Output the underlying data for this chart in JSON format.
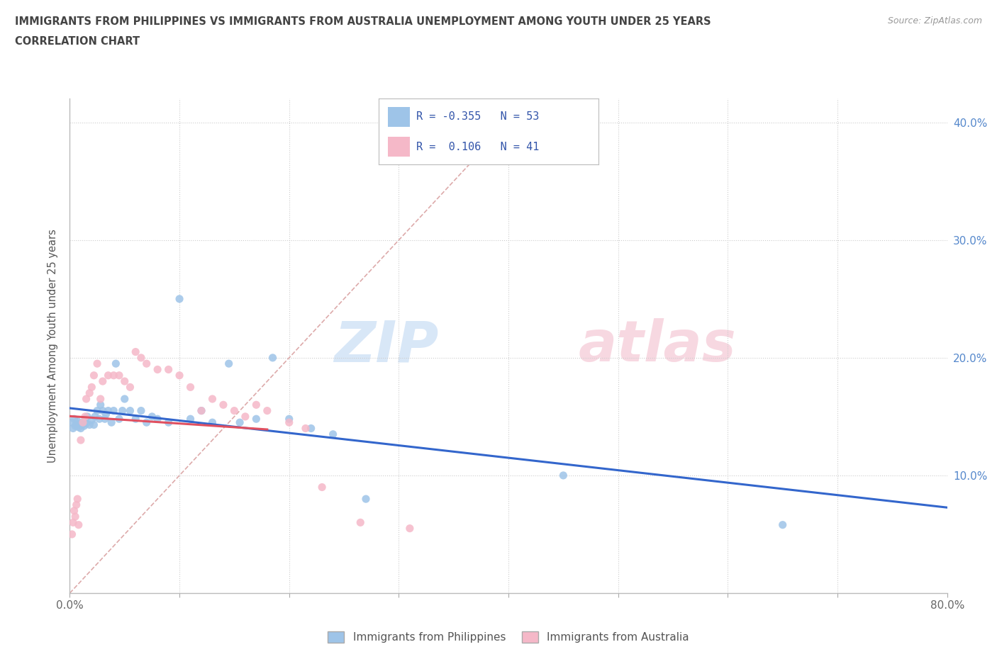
{
  "title_line1": "IMMIGRANTS FROM PHILIPPINES VS IMMIGRANTS FROM AUSTRALIA UNEMPLOYMENT AMONG YOUTH UNDER 25 YEARS",
  "title_line2": "CORRELATION CHART",
  "source_text": "Source: ZipAtlas.com",
  "ylabel": "Unemployment Among Youth under 25 years",
  "xlim": [
    0.0,
    0.8
  ],
  "ylim": [
    0.0,
    0.42
  ],
  "xticks": [
    0.0,
    0.1,
    0.2,
    0.3,
    0.4,
    0.5,
    0.6,
    0.7,
    0.8
  ],
  "ytick_positions": [
    0.1,
    0.2,
    0.3,
    0.4
  ],
  "ytick_labels": [
    "10.0%",
    "20.0%",
    "30.0%",
    "40.0%"
  ],
  "philippines_color": "#9ec4e8",
  "australia_color": "#f5b8c8",
  "philippines_line_color": "#3366cc",
  "australia_line_color": "#e05060",
  "diagonal_color": "#ddaaaa",
  "philippines_x": [
    0.002,
    0.003,
    0.004,
    0.005,
    0.006,
    0.007,
    0.008,
    0.009,
    0.01,
    0.011,
    0.012,
    0.013,
    0.014,
    0.015,
    0.016,
    0.018,
    0.02,
    0.022,
    0.023,
    0.025,
    0.027,
    0.028,
    0.03,
    0.032,
    0.033,
    0.035,
    0.038,
    0.04,
    0.042,
    0.045,
    0.048,
    0.05,
    0.055,
    0.06,
    0.065,
    0.07,
    0.075,
    0.08,
    0.09,
    0.1,
    0.11,
    0.12,
    0.13,
    0.145,
    0.155,
    0.17,
    0.185,
    0.2,
    0.22,
    0.24,
    0.27,
    0.45,
    0.65
  ],
  "philippines_y": [
    0.145,
    0.14,
    0.148,
    0.142,
    0.143,
    0.146,
    0.141,
    0.144,
    0.14,
    0.143,
    0.145,
    0.142,
    0.148,
    0.144,
    0.15,
    0.143,
    0.147,
    0.143,
    0.15,
    0.155,
    0.148,
    0.16,
    0.155,
    0.148,
    0.152,
    0.155,
    0.145,
    0.155,
    0.195,
    0.148,
    0.155,
    0.165,
    0.155,
    0.148,
    0.155,
    0.145,
    0.15,
    0.148,
    0.145,
    0.25,
    0.148,
    0.155,
    0.145,
    0.195,
    0.145,
    0.148,
    0.2,
    0.148,
    0.14,
    0.135,
    0.08,
    0.1,
    0.058
  ],
  "australia_x": [
    0.002,
    0.003,
    0.004,
    0.005,
    0.006,
    0.007,
    0.008,
    0.01,
    0.012,
    0.014,
    0.015,
    0.018,
    0.02,
    0.022,
    0.025,
    0.028,
    0.03,
    0.035,
    0.04,
    0.045,
    0.05,
    0.055,
    0.06,
    0.065,
    0.07,
    0.08,
    0.09,
    0.1,
    0.11,
    0.12,
    0.13,
    0.14,
    0.15,
    0.16,
    0.17,
    0.18,
    0.2,
    0.215,
    0.23,
    0.265,
    0.31
  ],
  "australia_y": [
    0.05,
    0.06,
    0.07,
    0.065,
    0.075,
    0.08,
    0.058,
    0.13,
    0.145,
    0.15,
    0.165,
    0.17,
    0.175,
    0.185,
    0.195,
    0.165,
    0.18,
    0.185,
    0.185,
    0.185,
    0.18,
    0.175,
    0.205,
    0.2,
    0.195,
    0.19,
    0.19,
    0.185,
    0.175,
    0.155,
    0.165,
    0.16,
    0.155,
    0.15,
    0.16,
    0.155,
    0.145,
    0.14,
    0.09,
    0.06,
    0.055
  ]
}
